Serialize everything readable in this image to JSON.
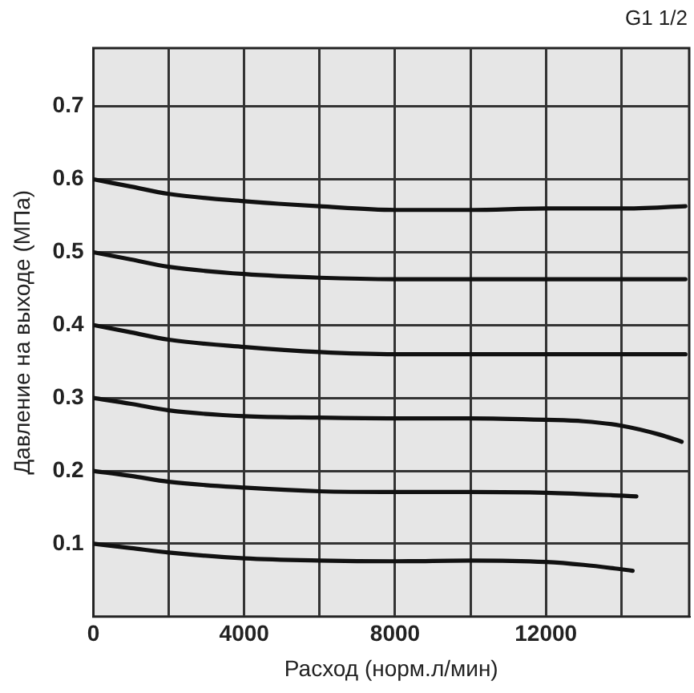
{
  "chart_data": {
    "type": "line",
    "xlabel": "Расход (норм.л/мин)",
    "ylabel": "Давление на выходе (МПа)",
    "annotations": [
      "G1 1/2"
    ],
    "xlim": [
      0,
      15800
    ],
    "ylim": [
      0,
      0.78
    ],
    "xticks": [
      0,
      {
        "value": 2000,
        "label": null
      },
      4000,
      {
        "value": 6000,
        "label": null
      },
      8000,
      {
        "value": 10000,
        "label": null
      },
      12000,
      {
        "value": 14000,
        "label": null
      }
    ],
    "yticks": [
      0.1,
      0.2,
      0.3,
      0.4,
      0.5,
      0.6,
      0.7
    ],
    "grid": true,
    "legend": false,
    "marker": "none",
    "line_style": "solid",
    "series": [
      {
        "color": "#111111",
        "x": [
          0,
          1000,
          2000,
          4000,
          6000,
          8000,
          10000,
          12000,
          14000,
          15700
        ],
        "values": [
          0.6,
          0.59,
          0.58,
          0.57,
          0.563,
          0.558,
          0.558,
          0.56,
          0.56,
          0.563
        ]
      },
      {
        "color": "#111111",
        "x": [
          0,
          1000,
          2000,
          4000,
          6000,
          8000,
          10000,
          12000,
          14000,
          15700
        ],
        "values": [
          0.5,
          0.49,
          0.48,
          0.47,
          0.465,
          0.463,
          0.463,
          0.463,
          0.463,
          0.463
        ]
      },
      {
        "color": "#111111",
        "x": [
          0,
          1000,
          2000,
          4000,
          6000,
          8000,
          10000,
          12000,
          14000,
          15700
        ],
        "values": [
          0.4,
          0.39,
          0.38,
          0.37,
          0.363,
          0.36,
          0.36,
          0.36,
          0.36,
          0.36
        ]
      },
      {
        "color": "#111111",
        "x": [
          0,
          1000,
          2000,
          4000,
          6000,
          8000,
          10000,
          12000,
          13000,
          14000,
          15000,
          15600
        ],
        "values": [
          0.3,
          0.292,
          0.283,
          0.275,
          0.273,
          0.272,
          0.272,
          0.27,
          0.268,
          0.262,
          0.25,
          0.24
        ]
      },
      {
        "color": "#111111",
        "x": [
          0,
          1000,
          2000,
          4000,
          6000,
          8000,
          10000,
          12000,
          14000,
          14400
        ],
        "values": [
          0.2,
          0.193,
          0.185,
          0.177,
          0.172,
          0.171,
          0.171,
          0.17,
          0.166,
          0.165
        ]
      },
      {
        "color": "#111111",
        "x": [
          0,
          1000,
          2000,
          4000,
          6000,
          8000,
          10000,
          12000,
          13000,
          14000,
          14300
        ],
        "values": [
          0.1,
          0.094,
          0.088,
          0.08,
          0.077,
          0.076,
          0.077,
          0.075,
          0.071,
          0.065,
          0.063
        ]
      }
    ]
  }
}
